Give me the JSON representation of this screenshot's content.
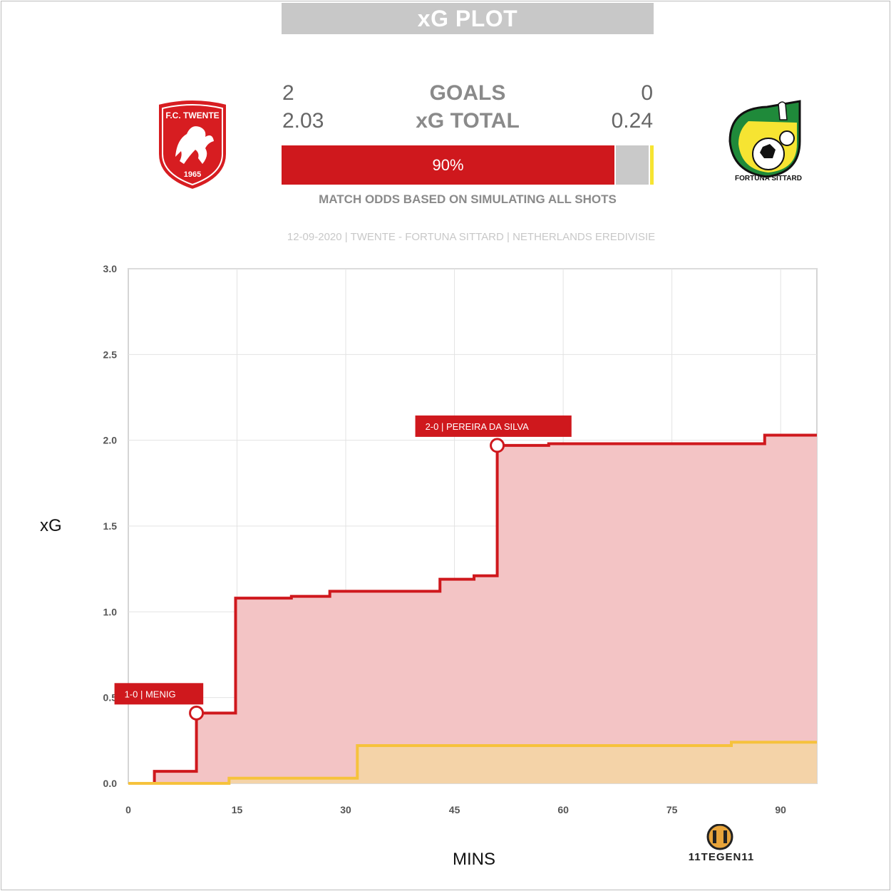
{
  "header": {
    "title": "xG PLOT"
  },
  "home": {
    "name": "F.C. TWENTE",
    "year": "1965",
    "goals": "2",
    "xg_total": "2.03",
    "color": "#cf181d"
  },
  "away": {
    "name": "FORTUNA SITTARD",
    "goals": "0",
    "xg_total": "0.24",
    "color": "#f6c23c"
  },
  "labels": {
    "goals": "GOALS",
    "xg_total": "xG TOTAL"
  },
  "odds": {
    "home_pct_label": "90%",
    "home": 0.9,
    "draw": 0.09,
    "away": 0.01,
    "note": "MATCH ODDS BASED ON SIMULATING ALL SHOTS"
  },
  "match_info": "12-09-2020 | TWENTE - FORTUNA SITTARD | NETHERLANDS EREDIVISIE",
  "brand": {
    "logo_text": "11TEGEN11"
  },
  "chart_data": {
    "type": "line",
    "step": true,
    "xlabel": "MINS",
    "ylabel": "xG",
    "xlim": [
      0,
      95
    ],
    "ylim": [
      0,
      3
    ],
    "xticks": [
      0,
      15,
      30,
      45,
      60,
      75,
      90
    ],
    "yticks": [
      0.0,
      0.5,
      1.0,
      1.5,
      2.0,
      2.5,
      3.0
    ],
    "grid": true,
    "series": [
      {
        "name": "Twente",
        "color": "#cf181d",
        "fill": "#f3c4c5",
        "points": [
          [
            0,
            0
          ],
          [
            3.6,
            0.07
          ],
          [
            9.4,
            0.41
          ],
          [
            14.8,
            1.08
          ],
          [
            22.5,
            1.09
          ],
          [
            27.8,
            1.12
          ],
          [
            43,
            1.19
          ],
          [
            47.7,
            1.21
          ],
          [
            50.9,
            1.97
          ],
          [
            58,
            1.98
          ],
          [
            87.8,
            2.03
          ],
          [
            95,
            2.03
          ]
        ]
      },
      {
        "name": "Fortuna Sittard",
        "color": "#f6c23c",
        "fill": "#f4d3a8",
        "points": [
          [
            0,
            0
          ],
          [
            13.9,
            0.03
          ],
          [
            31.6,
            0.22
          ],
          [
            83.2,
            0.24
          ],
          [
            95,
            0.24
          ]
        ]
      }
    ],
    "annotations": [
      {
        "text": "1-0 | MENIG",
        "x": 9.4,
        "y": 0.41
      },
      {
        "text": "2-0 | PEREIRA DA SILVA",
        "x": 50.9,
        "y": 1.97
      }
    ]
  }
}
